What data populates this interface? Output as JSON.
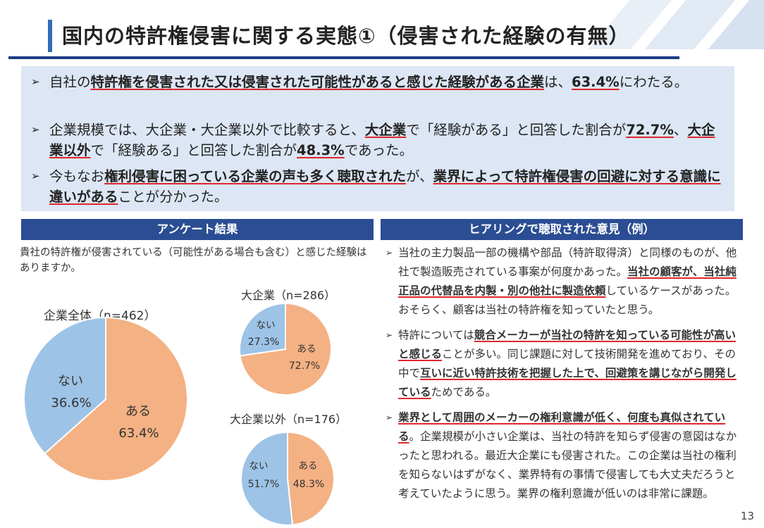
{
  "title": "国内の特許権侵害に関する実態①（侵害された経験の有無）",
  "summary": [
    {
      "segments": [
        {
          "t": "自社の",
          "b": false
        },
        {
          "t": "特許権を侵害された又は侵害された可能性があると感じた経験がある企業",
          "b": true
        },
        {
          "t": "は、",
          "b": false
        },
        {
          "t": "63.4%",
          "b": true
        },
        {
          "t": "にわたる。",
          "b": false
        }
      ]
    },
    {
      "segments": [
        {
          "t": "企業規模では、大企業・大企業以外で比較すると、",
          "b": false
        },
        {
          "t": "大企業",
          "b": true
        },
        {
          "t": "で「経験がある」と回答した割合が",
          "b": false
        },
        {
          "t": "72.7%",
          "b": true
        },
        {
          "t": "、",
          "b": false
        },
        {
          "t": "大企業以外",
          "b": true
        },
        {
          "t": "で「経験ある」と回答した割合が",
          "b": false
        },
        {
          "t": "48.3%",
          "b": true
        },
        {
          "t": "であった。",
          "b": false
        }
      ]
    },
    {
      "segments": [
        {
          "t": "今もなお",
          "b": false
        },
        {
          "t": "権利侵害に困っている企業の声も多く聴取された",
          "b": true
        },
        {
          "t": "が、",
          "b": false
        },
        {
          "t": "業界によって特許権侵害の回避に対する意識に違いがある",
          "b": true
        },
        {
          "t": "ことが分かった。",
          "b": false
        }
      ]
    }
  ],
  "survey": {
    "header": "アンケート結果",
    "question": "貴社の特許権が侵害されている（可能性がある場合も含む）と感じた経験はありますか。"
  },
  "hearing": {
    "header": "ヒアリングで聴取された意見（例）",
    "items": [
      {
        "segments": [
          {
            "t": "当社の主力製品一部の機構や部品（特許取得済）と同様のものが、他社で製造販売されている事案が何度かあった。",
            "b": false
          },
          {
            "t": "当社の顧客が、当社純正品の代替品を内製・別の他社に製造依頼",
            "b": true
          },
          {
            "t": "しているケースがあった。おそらく、顧客は当社の特許権を知っていたと思う。",
            "b": false
          }
        ]
      },
      {
        "segments": [
          {
            "t": "特許については",
            "b": false
          },
          {
            "t": "競合メーカーが当社の特許を知っている可能性が高いと感じる",
            "b": true
          },
          {
            "t": "ことが多い。同じ課題に対して技術開発を進めており、その中で",
            "b": false
          },
          {
            "t": "互いに近い特許技術を把握した上で、回避策を講じながら開発している",
            "b": true
          },
          {
            "t": "ためである。",
            "b": false
          }
        ]
      },
      {
        "segments": [
          {
            "t": "業界として周囲のメーカーの権利意識が低く、何度も真似されている",
            "b": true
          },
          {
            "t": "。企業規模が小さい企業は、当社の特許を知らず侵害の意図はなかったと思われる。最近大企業にも侵害された。この企業は当社の権利を知らないはずがなく、業界特有の事情で侵害しても大丈夫だろうと考えていたように思う。業界の権利意識が低いのは非常に課題。",
            "b": false
          }
        ]
      }
    ]
  },
  "page_number": "13",
  "colors": {
    "yes": "#f4b183",
    "no": "#9dc3e6",
    "header": "#2b4d93",
    "summary_bg": "#dce6f4",
    "underline": "#e0262b"
  },
  "chart_data": [
    {
      "type": "pie",
      "title": "企業全体（n=462）",
      "labels": [
        "ある",
        "ない"
      ],
      "values": [
        63.4,
        36.6
      ],
      "value_labels": [
        "63.4%",
        "36.6%"
      ]
    },
    {
      "type": "pie",
      "title": "大企業（n=286）",
      "labels": [
        "ある",
        "ない"
      ],
      "values": [
        72.7,
        27.3
      ],
      "value_labels": [
        "72.7%",
        "27.3%"
      ]
    },
    {
      "type": "pie",
      "title": "大企業以外（n=176）",
      "labels": [
        "ある",
        "ない"
      ],
      "values": [
        48.3,
        51.7
      ],
      "value_labels": [
        "48.3%",
        "51.7%"
      ]
    }
  ]
}
